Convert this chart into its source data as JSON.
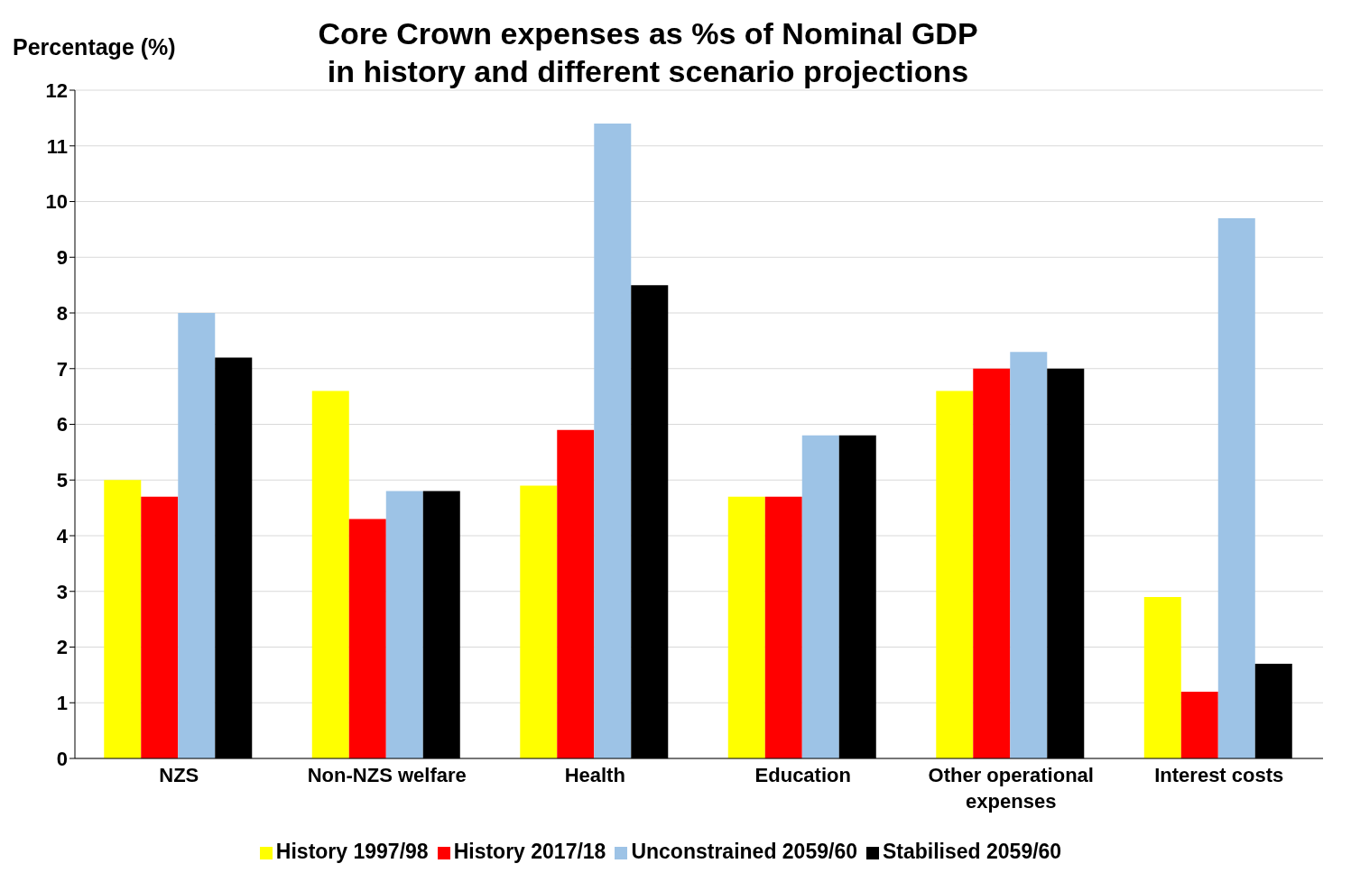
{
  "chart_data": {
    "type": "bar",
    "title": "Core Crown expenses as %s of Nominal GDP\nin history and different scenario projections",
    "ylabel": "Percentage (%)",
    "categories": [
      "NZS",
      "Non-NZS welfare",
      "Health",
      "Education",
      "Other operational expenses",
      "Interest costs"
    ],
    "series": [
      {
        "name": "History 1997/98",
        "color": "#ffff00",
        "values": [
          5.0,
          6.6,
          4.9,
          4.7,
          6.6,
          2.9
        ]
      },
      {
        "name": "History 2017/18",
        "color": "#ff0000",
        "values": [
          4.7,
          4.3,
          5.9,
          4.7,
          7.0,
          1.2
        ]
      },
      {
        "name": "Unconstrained 2059/60",
        "color": "#9dc3e6",
        "values": [
          8.0,
          4.8,
          11.4,
          5.8,
          7.3,
          9.7
        ]
      },
      {
        "name": "Stabilised 2059/60",
        "color": "#000000",
        "values": [
          7.2,
          4.8,
          8.5,
          5.8,
          7.0,
          1.7
        ]
      }
    ],
    "ylim": [
      0,
      12
    ],
    "yticks": [
      0,
      1,
      2,
      3,
      4,
      5,
      6,
      7,
      8,
      9,
      10,
      11,
      12
    ],
    "grid": "y",
    "legend": "bottom"
  }
}
